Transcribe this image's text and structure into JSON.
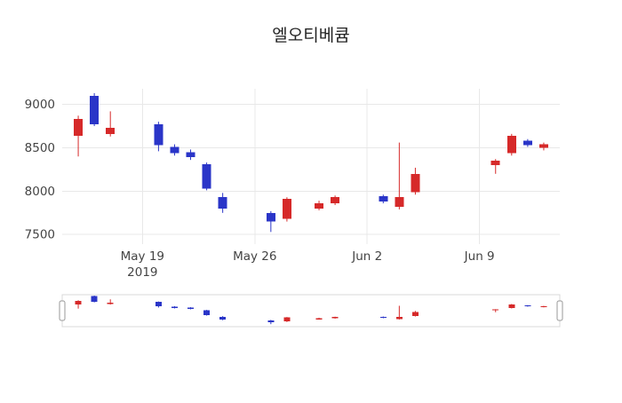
{
  "title": "엘오티베큠",
  "colors": {
    "increasing": "#d62929",
    "decreasing": "#2a35c8",
    "grid": "#e8e8e8",
    "axis_text": "#444444",
    "title_text": "#222222",
    "slider_border": "#d8d8d8",
    "handle_border": "#999999",
    "background": "#ffffff"
  },
  "chart_data": {
    "type": "candlestick",
    "title": "엘오티베큠",
    "x_range": [
      "2019-05-14",
      "2019-06-14"
    ],
    "y_range": [
      7390,
      9180
    ],
    "grid": true,
    "rangeslider": true,
    "y_ticks": [
      {
        "value": 9000,
        "label": "9000"
      },
      {
        "value": 8500,
        "label": "8500"
      },
      {
        "value": 8000,
        "label": "8000"
      },
      {
        "value": 7500,
        "label": "7500"
      }
    ],
    "x_ticks": [
      {
        "date": "2019-05-19",
        "label": "May 19",
        "sublabel": "2019"
      },
      {
        "date": "2019-05-26",
        "label": "May 26"
      },
      {
        "date": "2019-06-02",
        "label": "Jun 2"
      },
      {
        "date": "2019-06-09",
        "label": "Jun 9"
      }
    ],
    "candles": [
      {
        "date": "2019-05-15",
        "open": 8640,
        "high": 8870,
        "low": 8400,
        "close": 8830
      },
      {
        "date": "2019-05-16",
        "open": 9100,
        "high": 9130,
        "low": 8750,
        "close": 8770
      },
      {
        "date": "2019-05-17",
        "open": 8660,
        "high": 8920,
        "low": 8630,
        "close": 8730
      },
      {
        "date": "2019-05-20",
        "open": 8770,
        "high": 8800,
        "low": 8460,
        "close": 8530
      },
      {
        "date": "2019-05-21",
        "open": 8510,
        "high": 8540,
        "low": 8410,
        "close": 8440
      },
      {
        "date": "2019-05-22",
        "open": 8450,
        "high": 8480,
        "low": 8360,
        "close": 8390
      },
      {
        "date": "2019-05-23",
        "open": 8310,
        "high": 8330,
        "low": 8010,
        "close": 8030
      },
      {
        "date": "2019-05-24",
        "open": 7930,
        "high": 7980,
        "low": 7750,
        "close": 7800
      },
      {
        "date": "2019-05-27",
        "open": 7750,
        "high": 7770,
        "low": 7530,
        "close": 7650
      },
      {
        "date": "2019-05-28",
        "open": 7680,
        "high": 7930,
        "low": 7650,
        "close": 7910
      },
      {
        "date": "2019-05-30",
        "open": 7800,
        "high": 7890,
        "low": 7780,
        "close": 7860
      },
      {
        "date": "2019-05-31",
        "open": 7860,
        "high": 7950,
        "low": 7840,
        "close": 7930
      },
      {
        "date": "2019-06-03",
        "open": 7940,
        "high": 7960,
        "low": 7860,
        "close": 7880
      },
      {
        "date": "2019-06-04",
        "open": 7820,
        "high": 8560,
        "low": 7790,
        "close": 7930
      },
      {
        "date": "2019-06-05",
        "open": 7990,
        "high": 8270,
        "low": 7960,
        "close": 8200
      },
      {
        "date": "2019-06-10",
        "open": 8300,
        "high": 8370,
        "low": 8200,
        "close": 8350
      },
      {
        "date": "2019-06-11",
        "open": 8440,
        "high": 8660,
        "low": 8410,
        "close": 8640
      },
      {
        "date": "2019-06-12",
        "open": 8580,
        "high": 8600,
        "low": 8510,
        "close": 8530
      },
      {
        "date": "2019-06-13",
        "open": 8500,
        "high": 8560,
        "low": 8470,
        "close": 8540
      }
    ]
  }
}
